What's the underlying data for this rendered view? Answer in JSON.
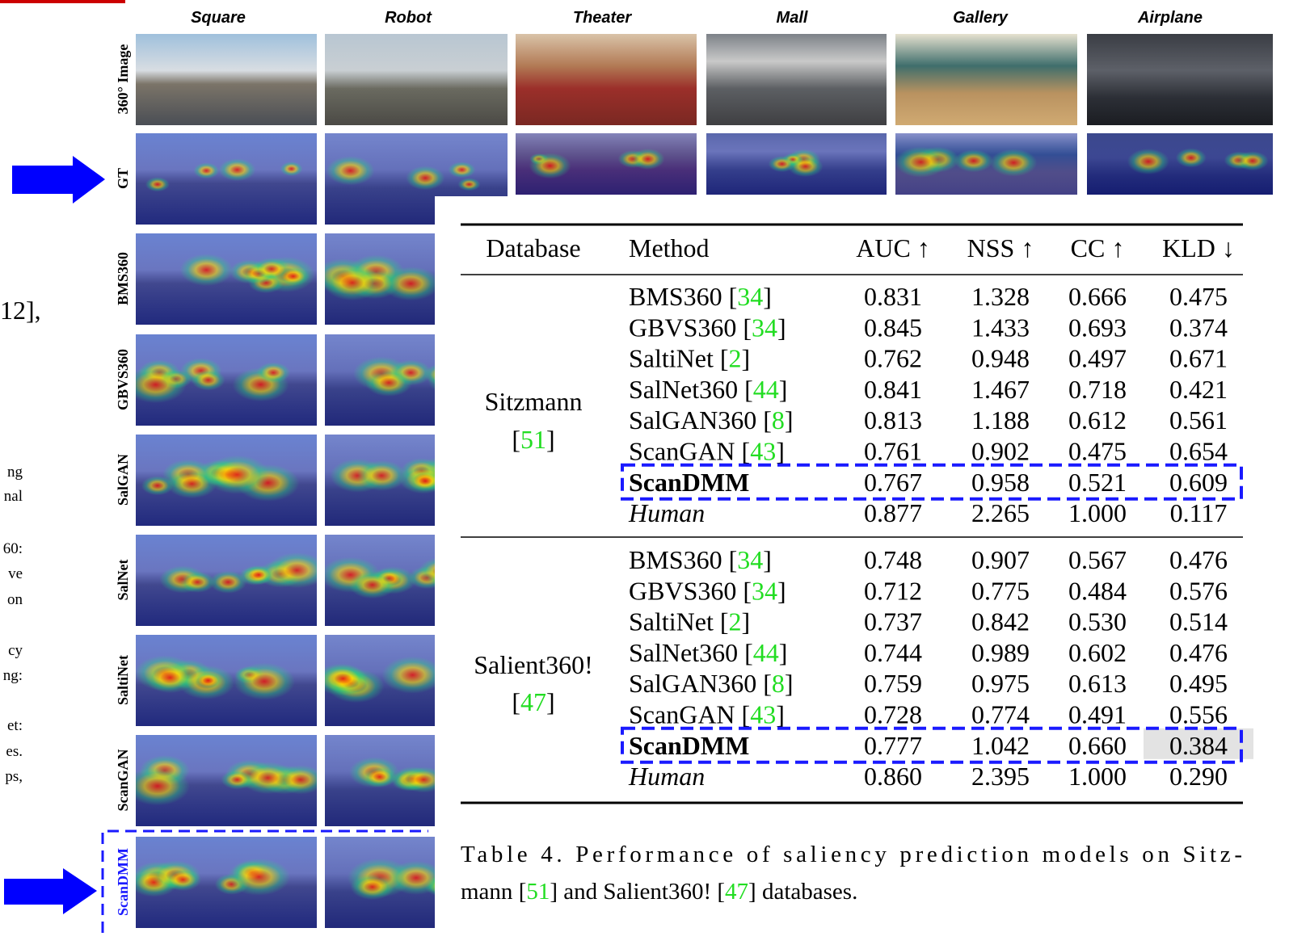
{
  "figure": {
    "columns": [
      "Square",
      "Robot",
      "Theater",
      "Mall",
      "Gallery",
      "Airplane"
    ],
    "rows": [
      "360° Image",
      "GT",
      "BMS360",
      "GBVS360",
      "SalGAN",
      "SalNet",
      "SaltiNet",
      "ScanGAN",
      "ScanDMM"
    ]
  },
  "left_fragments": [
    "12],",
    "ng",
    "nal",
    "60:",
    "ve",
    "on",
    "cy",
    "ng:",
    "et:",
    "es.",
    "ps,"
  ],
  "table": {
    "header": [
      "Database",
      "Method",
      "AUC ↑",
      "NSS ↑",
      "CC ↑",
      "KLD ↓"
    ],
    "groups": [
      {
        "database": [
          "Sitzmann",
          "[51]"
        ],
        "rows": [
          {
            "method": "BMS360 [34]",
            "values": [
              "0.831",
              "1.328",
              "0.666",
              "0.475"
            ]
          },
          {
            "method": "GBVS360 [34]",
            "values": [
              "0.845",
              "1.433",
              "0.693",
              "0.374"
            ],
            "shaded": [
              0,
              2,
              3
            ]
          },
          {
            "method": "SaltiNet [2]",
            "values": [
              "0.762",
              "0.948",
              "0.497",
              "0.671"
            ]
          },
          {
            "method": "SalNet360 [44]",
            "values": [
              "0.841",
              "1.467",
              "0.718",
              "0.421"
            ],
            "shaded": [
              1
            ]
          },
          {
            "method": "SalGAN360 [8]",
            "values": [
              "0.813",
              "1.188",
              "0.612",
              "0.561"
            ]
          },
          {
            "method": "ScanGAN [43]",
            "values": [
              "0.761",
              "0.902",
              "0.475",
              "0.654"
            ]
          },
          {
            "method": "ScanDMM",
            "values": [
              "0.767",
              "0.958",
              "0.521",
              "0.609"
            ],
            "bold": true,
            "boxed": true
          },
          {
            "method": "Human",
            "values": [
              "0.877",
              "2.265",
              "1.000",
              "0.117"
            ],
            "italic": true
          }
        ]
      },
      {
        "database": [
          "Salient360!",
          "[47]"
        ],
        "rows": [
          {
            "method": "BMS360 [34]",
            "values": [
              "0.748",
              "0.907",
              "0.567",
              "0.476"
            ]
          },
          {
            "method": "GBVS360 [34]",
            "values": [
              "0.712",
              "0.775",
              "0.484",
              "0.576"
            ]
          },
          {
            "method": "SaltiNet [2]",
            "values": [
              "0.737",
              "0.842",
              "0.530",
              "0.514"
            ]
          },
          {
            "method": "SalNet360 [44]",
            "values": [
              "0.744",
              "0.989",
              "0.602",
              "0.476"
            ]
          },
          {
            "method": "SalGAN360 [8]",
            "values": [
              "0.759",
              "0.975",
              "0.613",
              "0.495"
            ]
          },
          {
            "method": "ScanGAN [43]",
            "values": [
              "0.728",
              "0.774",
              "0.491",
              "0.556"
            ]
          },
          {
            "method": "ScanDMM",
            "values": [
              "0.777",
              "1.042",
              "0.660",
              "0.384"
            ],
            "bold": true,
            "boxed": true,
            "shaded": [
              0,
              1,
              2,
              3
            ]
          },
          {
            "method": "Human",
            "values": [
              "0.860",
              "2.395",
              "1.000",
              "0.290"
            ],
            "italic": true
          }
        ]
      }
    ],
    "caption": [
      "Table 4.  Performance of saliency prediction models on Sitz-",
      "mann [51] and Salient360! [47] databases."
    ]
  }
}
